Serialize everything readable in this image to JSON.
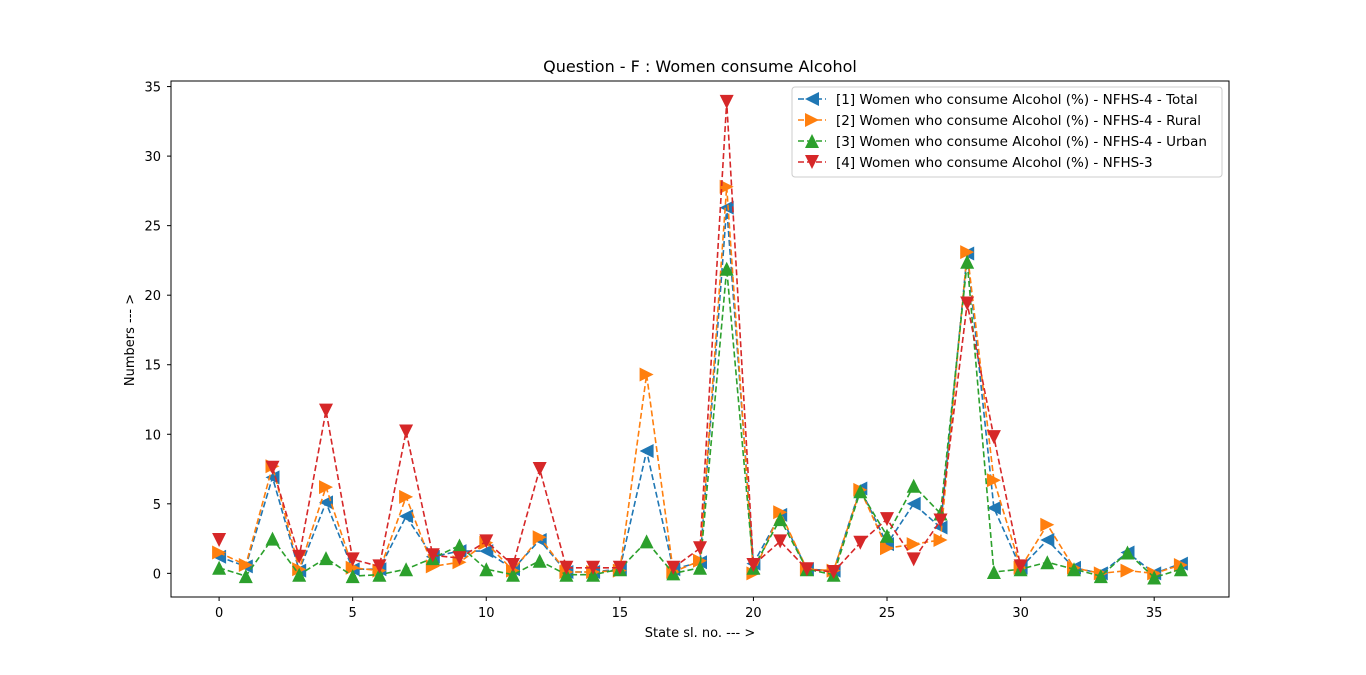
{
  "chart_data": {
    "type": "line",
    "title": "Question - F : Women consume Alcohol",
    "xlabel": "State sl. no. --- >",
    "ylabel": "Numbers --- >",
    "xlim": [
      -1.8,
      37.8
    ],
    "ylim": [
      -1.7,
      35.4
    ],
    "xticks": [
      0,
      5,
      10,
      15,
      20,
      25,
      30,
      35
    ],
    "yticks": [
      0,
      5,
      10,
      15,
      20,
      25,
      30,
      35
    ],
    "grid": false,
    "legend_position": "top-right",
    "x": [
      0,
      1,
      2,
      3,
      4,
      5,
      6,
      7,
      8,
      9,
      10,
      11,
      12,
      13,
      14,
      15,
      16,
      17,
      18,
      19,
      20,
      21,
      22,
      23,
      24,
      25,
      26,
      27,
      28,
      29,
      30,
      31,
      32,
      33,
      34,
      35,
      36
    ],
    "series": [
      {
        "name": "[1] Women who consume Alcohol (%) - NFHS-4 - Total",
        "color": "#1f77b4",
        "marker": "triangle-left",
        "values": [
          1.2,
          0.5,
          6.9,
          0.2,
          5.1,
          0.3,
          0.3,
          4.1,
          1.2,
          1.6,
          1.6,
          0.3,
          2.4,
          0.1,
          0.1,
          0.3,
          8.8,
          0.3,
          0.8,
          26.3,
          0.7,
          4.2,
          0.3,
          0.2,
          6.1,
          2.1,
          5.0,
          3.3,
          23.0,
          4.7,
          0.4,
          2.4,
          0.4,
          0.0,
          1.5,
          0.0,
          0.7
        ]
      },
      {
        "name": "[2] Women who consume Alcohol (%) - NFHS-4 - Rural",
        "color": "#ff7f0e",
        "marker": "triangle-right",
        "values": [
          1.5,
          0.6,
          7.7,
          0.3,
          6.2,
          0.4,
          0.2,
          5.5,
          0.5,
          0.8,
          2.2,
          0.2,
          2.6,
          0.1,
          0.1,
          0.2,
          14.3,
          0.1,
          0.9,
          27.8,
          0.0,
          4.4,
          0.3,
          0.2,
          6.0,
          1.8,
          2.1,
          2.4,
          23.1,
          6.7,
          0.4,
          3.5,
          0.4,
          0.0,
          0.2,
          0.0,
          0.6
        ]
      },
      {
        "name": "[3] Women who consume Alcohol (%) - NFHS-4 - Urban",
        "color": "#2ca02c",
        "marker": "triangle-up",
        "values": [
          0.4,
          -0.2,
          2.5,
          -0.1,
          1.1,
          -0.2,
          -0.1,
          0.3,
          1.1,
          2.0,
          0.3,
          -0.1,
          0.9,
          -0.1,
          -0.1,
          0.3,
          2.3,
          0.0,
          0.4,
          21.9,
          0.4,
          3.9,
          0.3,
          -0.1,
          5.9,
          2.7,
          6.3,
          4.3,
          22.4,
          0.1,
          0.3,
          0.8,
          0.3,
          -0.2,
          1.5,
          -0.3,
          0.3
        ]
      },
      {
        "name": "[4] Women who consume Alcohol (%) - NFHS-3",
        "color": "#d62728",
        "marker": "triangle-down",
        "values": [
          2.4,
          null,
          7.6,
          1.2,
          11.7,
          1.0,
          0.5,
          10.2,
          1.3,
          1.1,
          2.3,
          0.6,
          7.5,
          0.4,
          0.4,
          0.4,
          null,
          0.4,
          1.8,
          33.9,
          0.6,
          2.3,
          0.3,
          0.1,
          2.2,
          3.9,
          1.0,
          3.8,
          19.4,
          9.8,
          0.5,
          null,
          null,
          null,
          null,
          null,
          null
        ]
      }
    ]
  }
}
